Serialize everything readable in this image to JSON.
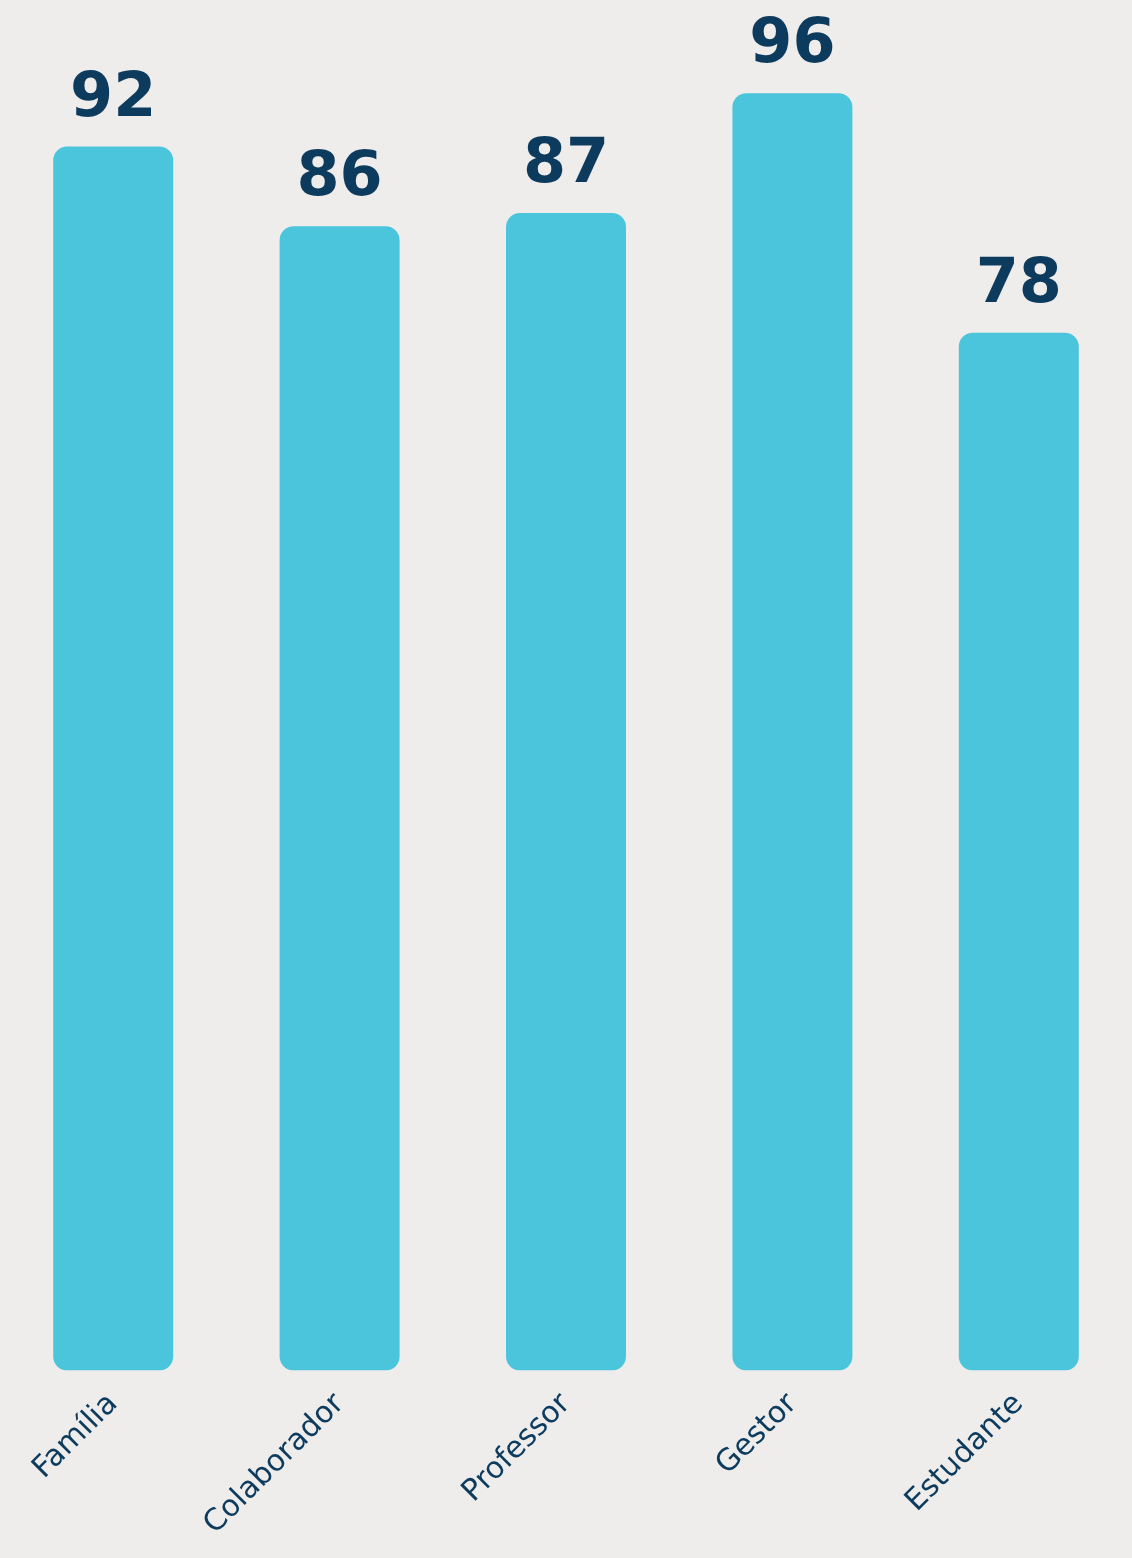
{
  "chart_data": {
    "type": "bar",
    "categories": [
      "Família",
      "Colaborador",
      "Professor",
      "Gestor",
      "Estudante"
    ],
    "values": [
      92,
      86,
      87,
      96,
      78
    ],
    "color": "#4bc5dc",
    "data_labels": true,
    "grid": false,
    "legend": false
  }
}
